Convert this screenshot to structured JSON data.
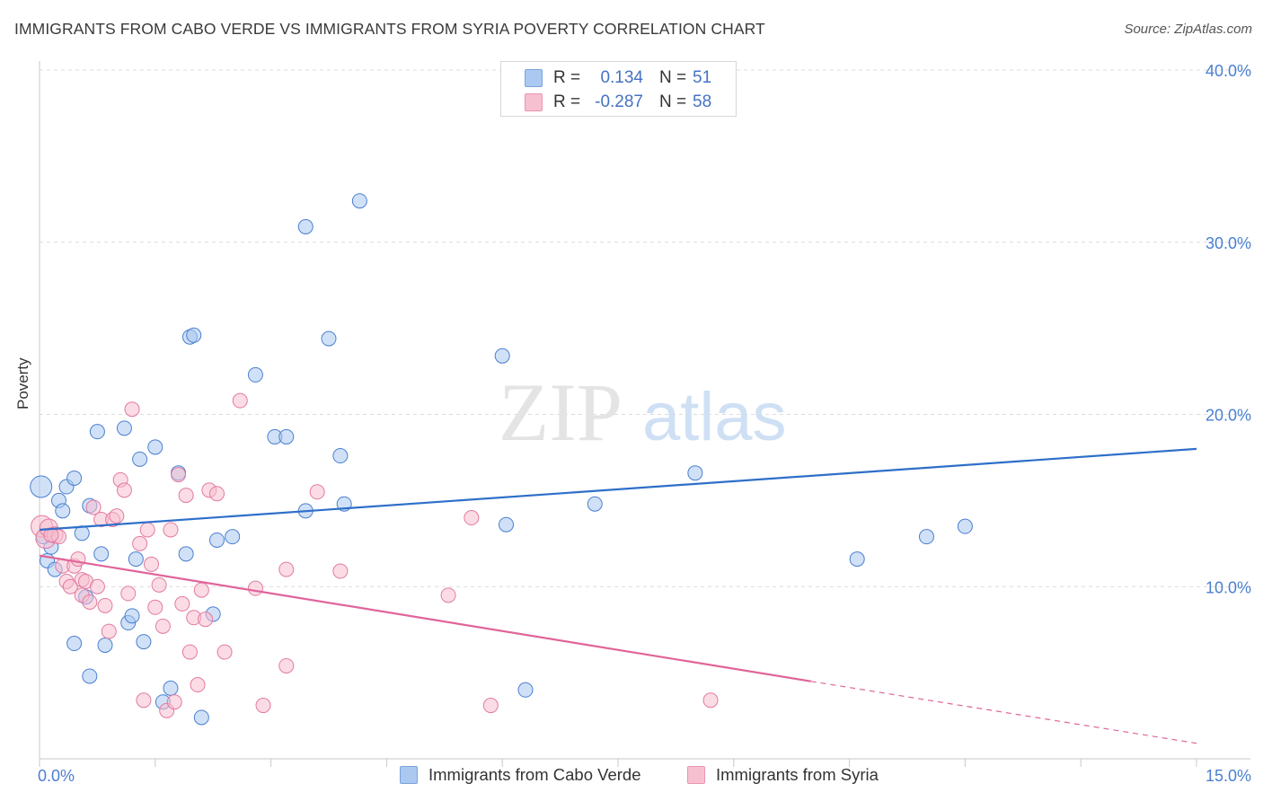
{
  "title": "IMMIGRANTS FROM CABO VERDE VS IMMIGRANTS FROM SYRIA POVERTY CORRELATION CHART",
  "source": "Source: ZipAtlas.com",
  "watermark": {
    "zip": "ZIP",
    "atlas": "atlas"
  },
  "stats": [
    {
      "r_label": "R =",
      "r_value": "0.134",
      "n_label": "N =",
      "n_value": "51",
      "color": "#aac8f0",
      "border": "#7aa3da"
    },
    {
      "r_label": "R =",
      "r_value": "-0.287",
      "n_label": "N =",
      "n_value": "58",
      "color": "#f7c0d0",
      "border": "#e895b0"
    }
  ],
  "legend": [
    {
      "label": "Immigrants from Cabo Verde",
      "color": "#aac8f0",
      "border": "#7aa3da"
    },
    {
      "label": "Immigrants from Syria",
      "color": "#f7c0d0",
      "border": "#e895b0"
    }
  ],
  "chart_data": {
    "type": "scatter",
    "title": "IMMIGRANTS FROM CABO VERDE VS IMMIGRANTS FROM SYRIA POVERTY CORRELATION CHART",
    "xlabel": "",
    "ylabel": "Poverty",
    "xlim": [
      0,
      15
    ],
    "ylim": [
      0,
      40
    ],
    "x_tick_labels": [
      {
        "value": 0,
        "label": "0.0%"
      },
      {
        "value": 15,
        "label": "15.0%"
      }
    ],
    "y_tick_labels": [
      {
        "value": 10,
        "label": "10.0%"
      },
      {
        "value": 20,
        "label": "20.0%"
      },
      {
        "value": 30,
        "label": "30.0%"
      },
      {
        "value": 40,
        "label": "40.0%"
      }
    ],
    "grid": "horizontal dashed",
    "legend_position": "bottom-center",
    "series": [
      {
        "name": "Immigrants from Cabo Verde",
        "color": "#4a7fd0",
        "fill": "#aac8f0",
        "trend": {
          "x": [
            0,
            15
          ],
          "y": [
            13.3,
            18.0
          ],
          "color": "#2e6fc9"
        },
        "points": [
          [
            0.02,
            15.8,
            11
          ],
          [
            0.1,
            11.5,
            7
          ],
          [
            0.15,
            12.3,
            7
          ],
          [
            0.2,
            11.0,
            7
          ],
          [
            0.25,
            15.0,
            7
          ],
          [
            0.3,
            14.4,
            7
          ],
          [
            0.35,
            15.8,
            7
          ],
          [
            0.45,
            16.3,
            7
          ],
          [
            0.55,
            13.1,
            7
          ],
          [
            0.45,
            6.7,
            7
          ],
          [
            0.65,
            14.7,
            7
          ],
          [
            0.6,
            9.4,
            7
          ],
          [
            0.75,
            19.0,
            7
          ],
          [
            0.65,
            4.8,
            7
          ],
          [
            0.8,
            11.9,
            7
          ],
          [
            0.85,
            6.6,
            7
          ],
          [
            1.1,
            19.2,
            7
          ],
          [
            1.15,
            7.9,
            7
          ],
          [
            1.2,
            8.3,
            7
          ],
          [
            1.25,
            11.6,
            7
          ],
          [
            1.3,
            17.4,
            7
          ],
          [
            1.35,
            6.8,
            7
          ],
          [
            1.5,
            18.1,
            7
          ],
          [
            1.6,
            3.3,
            7
          ],
          [
            1.7,
            4.1,
            7
          ],
          [
            1.8,
            16.6,
            7
          ],
          [
            1.9,
            11.9,
            7
          ],
          [
            1.95,
            24.5,
            7
          ],
          [
            2.0,
            24.6,
            7
          ],
          [
            2.1,
            2.4,
            7
          ],
          [
            2.25,
            8.4,
            7
          ],
          [
            2.3,
            12.7,
            7
          ],
          [
            2.5,
            12.9,
            7
          ],
          [
            2.8,
            22.3,
            7
          ],
          [
            3.05,
            18.7,
            7
          ],
          [
            3.2,
            18.7,
            7
          ],
          [
            3.45,
            30.9,
            7
          ],
          [
            3.45,
            14.4,
            7
          ],
          [
            3.75,
            24.4,
            7
          ],
          [
            3.9,
            17.6,
            7
          ],
          [
            3.95,
            14.8,
            7
          ],
          [
            4.15,
            32.4,
            7
          ],
          [
            6.0,
            23.4,
            7
          ],
          [
            6.05,
            13.6,
            7
          ],
          [
            6.3,
            4.0,
            7
          ],
          [
            7.2,
            14.8,
            7
          ],
          [
            8.5,
            16.6,
            7
          ],
          [
            10.6,
            11.6,
            7
          ],
          [
            11.5,
            12.9,
            7
          ],
          [
            12.0,
            13.5,
            7
          ],
          [
            0.05,
            12.9,
            7
          ]
        ]
      },
      {
        "name": "Immigrants from Syria",
        "color": "#e37aa0",
        "fill": "#f7c0d0",
        "trend": {
          "x": [
            0,
            10.0
          ],
          "y": [
            11.8,
            4.5
          ],
          "dash_x": [
            10.0,
            15.0
          ],
          "dash_y": [
            4.5,
            0.9
          ],
          "color": "#e0649a"
        },
        "points": [
          [
            0.03,
            13.5,
            11
          ],
          [
            0.08,
            12.8,
            10
          ],
          [
            0.12,
            13.4,
            9
          ],
          [
            0.2,
            13.0,
            8
          ],
          [
            0.25,
            12.9,
            7
          ],
          [
            0.3,
            11.2,
            7
          ],
          [
            0.35,
            10.3,
            7
          ],
          [
            0.4,
            10.0,
            7
          ],
          [
            0.45,
            11.2,
            7
          ],
          [
            0.5,
            11.6,
            7
          ],
          [
            0.55,
            10.4,
            7
          ],
          [
            0.55,
            9.5,
            7
          ],
          [
            0.6,
            10.3,
            7
          ],
          [
            0.65,
            9.1,
            7
          ],
          [
            0.7,
            14.6,
            7
          ],
          [
            0.75,
            10.0,
            7
          ],
          [
            0.8,
            13.9,
            7
          ],
          [
            0.85,
            8.9,
            7
          ],
          [
            0.9,
            7.4,
            7
          ],
          [
            0.95,
            13.9,
            7
          ],
          [
            1.0,
            14.1,
            7
          ],
          [
            1.05,
            16.2,
            7
          ],
          [
            1.1,
            15.6,
            7
          ],
          [
            1.15,
            9.6,
            7
          ],
          [
            1.2,
            20.3,
            7
          ],
          [
            1.3,
            12.5,
            7
          ],
          [
            1.35,
            3.4,
            7
          ],
          [
            1.4,
            13.3,
            7
          ],
          [
            1.45,
            11.3,
            7
          ],
          [
            1.5,
            8.8,
            7
          ],
          [
            1.55,
            10.1,
            7
          ],
          [
            1.6,
            7.7,
            7
          ],
          [
            1.65,
            2.8,
            7
          ],
          [
            1.7,
            13.3,
            7
          ],
          [
            1.75,
            3.3,
            7
          ],
          [
            1.8,
            16.5,
            7
          ],
          [
            1.85,
            9.0,
            7
          ],
          [
            1.9,
            15.3,
            7
          ],
          [
            1.95,
            6.2,
            7
          ],
          [
            2.0,
            8.2,
            7
          ],
          [
            2.05,
            4.3,
            7
          ],
          [
            2.1,
            9.8,
            7
          ],
          [
            2.15,
            8.1,
            7
          ],
          [
            2.2,
            15.6,
            7
          ],
          [
            2.3,
            15.4,
            7
          ],
          [
            2.4,
            6.2,
            7
          ],
          [
            2.6,
            20.8,
            7
          ],
          [
            2.8,
            9.9,
            7
          ],
          [
            2.9,
            3.1,
            7
          ],
          [
            3.2,
            11.0,
            7
          ],
          [
            3.2,
            5.4,
            7
          ],
          [
            3.6,
            15.5,
            7
          ],
          [
            3.9,
            10.9,
            7
          ],
          [
            5.3,
            9.5,
            7
          ],
          [
            5.6,
            14.0,
            7
          ],
          [
            5.85,
            3.1,
            7
          ],
          [
            8.7,
            3.4,
            7
          ],
          [
            0.15,
            13.0,
            7
          ]
        ]
      }
    ]
  }
}
